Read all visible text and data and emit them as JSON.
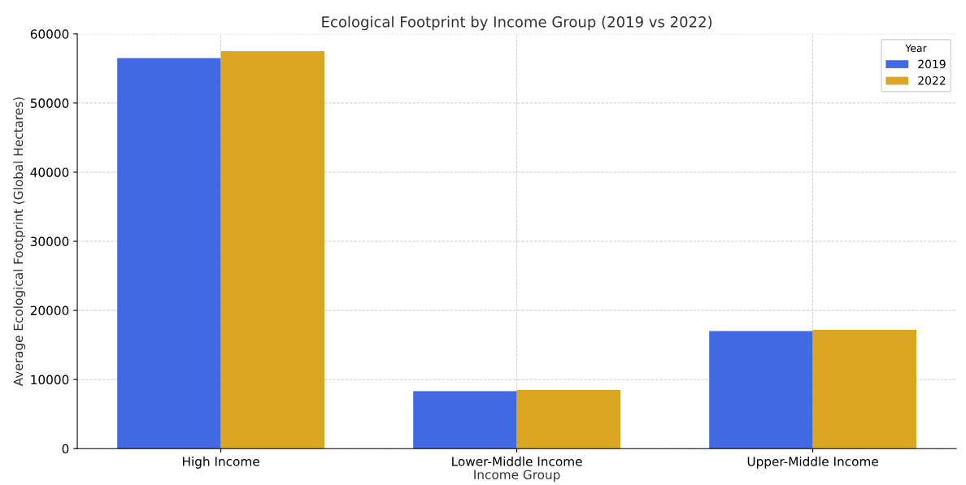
{
  "chart_data": {
    "type": "bar",
    "title": "Ecological Footprint by Income Group (2019 vs 2022)",
    "xlabel": "Income Group",
    "ylabel": "Average Ecological Footprint (Global Hectares)",
    "categories": [
      "High Income",
      "Lower-Middle Income",
      "Upper-Middle Income"
    ],
    "series": [
      {
        "name": "2019",
        "color": "#4169e1",
        "values": [
          56500,
          8300,
          17000
        ]
      },
      {
        "name": "2022",
        "color": "#daa520",
        "values": [
          57500,
          8500,
          17200
        ]
      }
    ],
    "ylim": [
      0,
      60000
    ],
    "yticks": [
      0,
      10000,
      20000,
      30000,
      40000,
      50000,
      60000
    ],
    "grid": true,
    "legend": "top right",
    "legend_title": "Year"
  }
}
